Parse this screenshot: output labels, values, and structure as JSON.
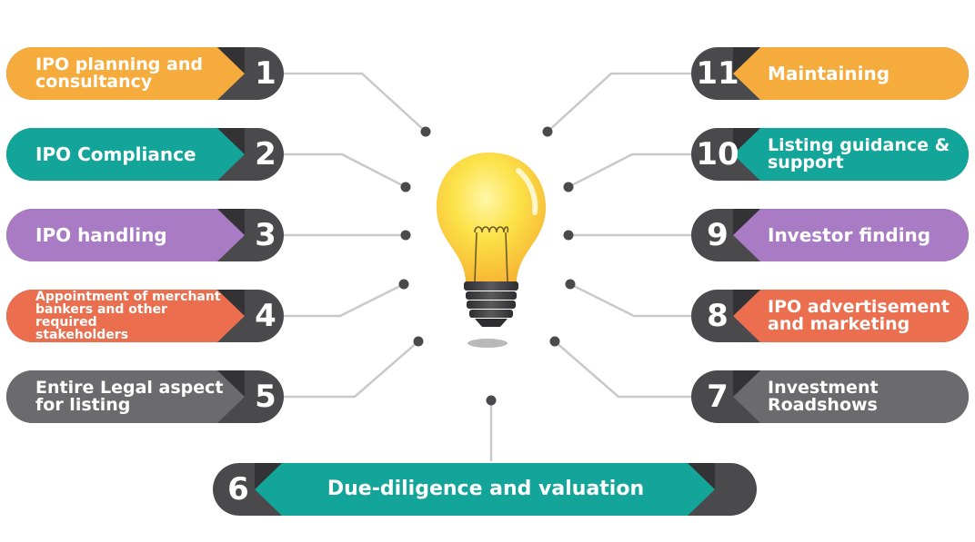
{
  "colors": {
    "orange": "#F6AB3D",
    "teal": "#14A59A",
    "purple": "#A97BC4",
    "coral": "#EB6E4F",
    "gray": "#6B6B6D",
    "dark": "#4A4A4C",
    "darker": "#333335",
    "line": "#C9C9C9",
    "dot": "#4A4A4C"
  },
  "steps": [
    {
      "id": "1",
      "number": "1",
      "label": "IPO planning and\nconsultancy",
      "color": "orange",
      "side": "left",
      "font": 19
    },
    {
      "id": "2",
      "number": "2",
      "label": "IPO Compliance",
      "color": "teal",
      "side": "left",
      "font": 20
    },
    {
      "id": "3",
      "number": "3",
      "label": "IPO handling",
      "color": "purple",
      "side": "left",
      "font": 20
    },
    {
      "id": "4",
      "number": "4",
      "label": "Appointment of merchant\nbankers and other required\n stakeholders",
      "color": "coral",
      "side": "left",
      "font": 14
    },
    {
      "id": "5",
      "number": "5",
      "label": "Entire Legal aspect\nfor listing",
      "color": "gray",
      "side": "left",
      "font": 19
    },
    {
      "id": "11",
      "number": "11",
      "label": "Maintaining",
      "color": "orange",
      "side": "right",
      "font": 20
    },
    {
      "id": "10",
      "number": "10",
      "label": "Listing guidance &\nsupport",
      "color": "teal",
      "side": "right",
      "font": 19
    },
    {
      "id": "9",
      "number": "9",
      "label": "Investor finding",
      "color": "purple",
      "side": "right",
      "font": 20
    },
    {
      "id": "8",
      "number": "8",
      "label": "IPO advertisement\nand marketing",
      "color": "coral",
      "side": "right",
      "font": 19
    },
    {
      "id": "7",
      "number": "7",
      "label": "Investment\nRoadshows",
      "color": "gray",
      "side": "right",
      "font": 19
    },
    {
      "id": "6",
      "number": "6",
      "label": "Due-diligence and valuation",
      "color": "teal",
      "side": "bottom",
      "font": 22
    }
  ]
}
